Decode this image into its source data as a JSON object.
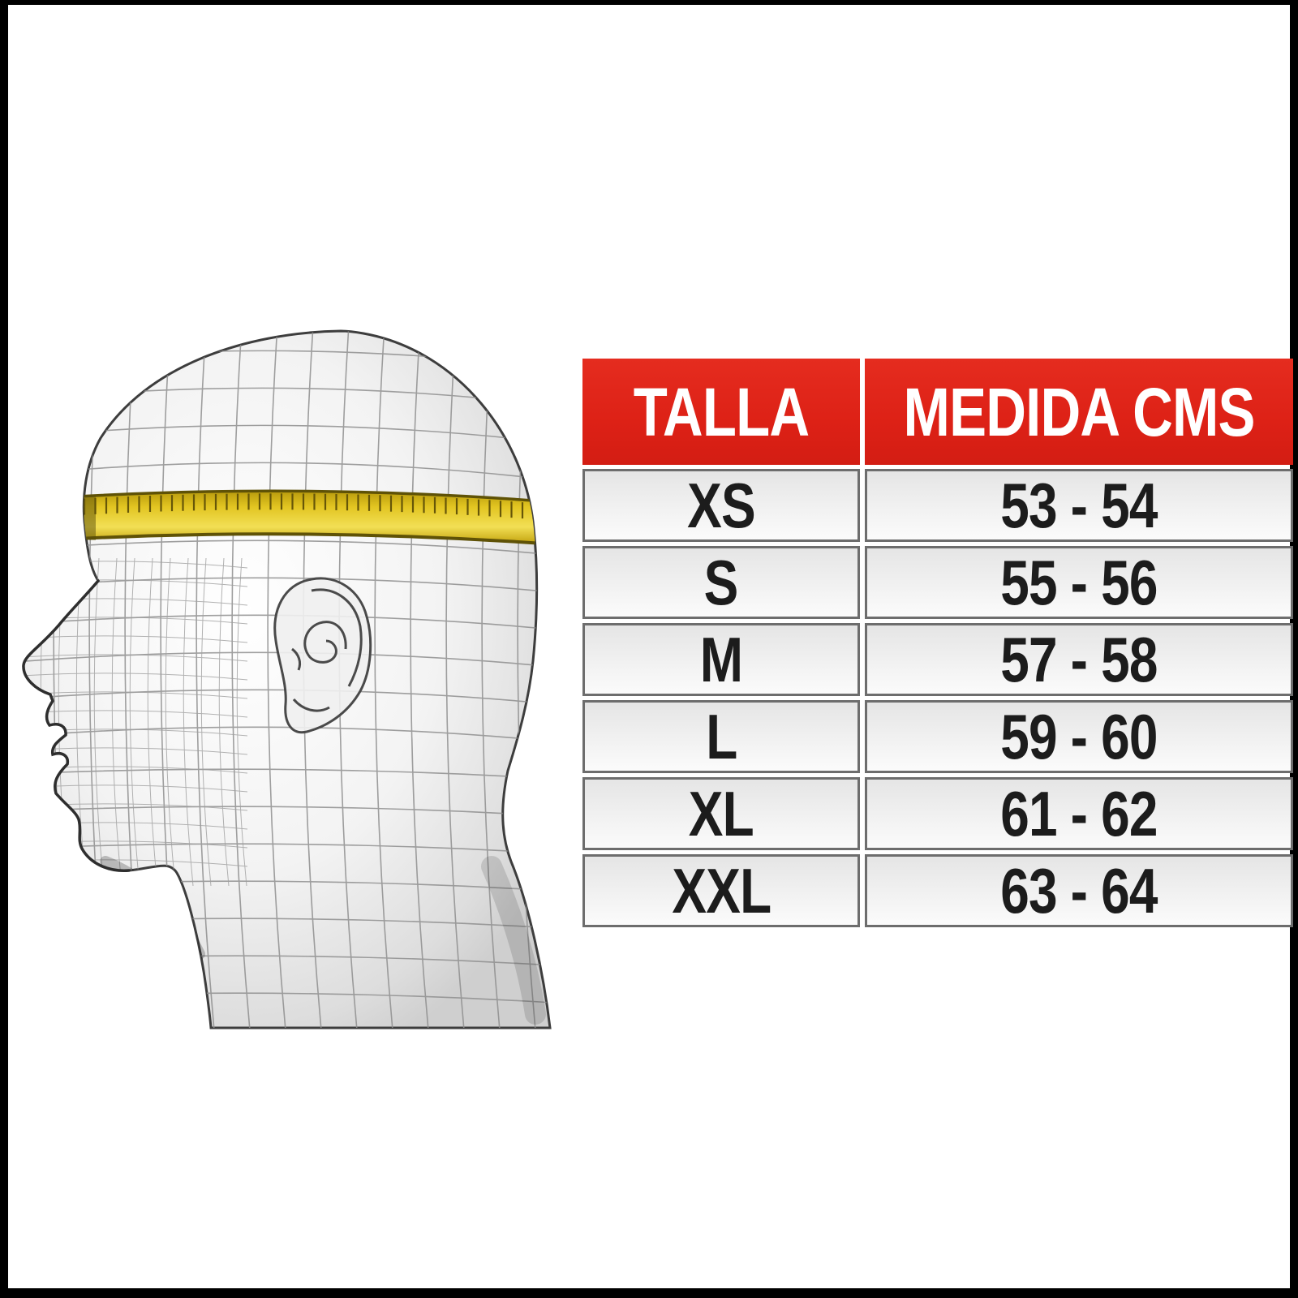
{
  "frame": {
    "border_color": "#000000",
    "canvas_color": "#ffffff"
  },
  "illustration": {
    "description": "wireframe-head-side-profile-with-measuring-tape",
    "mesh_color": "#8f8f8f",
    "outline_color": "#3d3d3d",
    "band_color": "#e7cc2e",
    "band_edge_color": "#5f5206"
  },
  "size_table": {
    "header": {
      "talla": "TALLA",
      "medida": "MEDIDA CMS"
    },
    "rows": [
      {
        "talla": "XS",
        "medida": "53 - 54"
      },
      {
        "talla": "S",
        "medida": "55 - 56"
      },
      {
        "talla": "M",
        "medida": "57 - 58"
      },
      {
        "talla": "L",
        "medida": "59 - 60"
      },
      {
        "talla": "XL",
        "medida": "61 - 62"
      },
      {
        "talla": "XXL",
        "medida": "63 - 64"
      }
    ],
    "colors": {
      "header_bg": "#e0241a",
      "header_text": "#ffffff",
      "row_bg": "#ececec",
      "row_text": "#1c1c1c",
      "cell_border": "#6d6d6d"
    }
  },
  "chart_data": {
    "type": "table",
    "title": "",
    "columns": [
      "TALLA",
      "MEDIDA CMS"
    ],
    "rows": [
      [
        "XS",
        "53 - 54"
      ],
      [
        "S",
        "55 - 56"
      ],
      [
        "M",
        "57 - 58"
      ],
      [
        "L",
        "59 - 60"
      ],
      [
        "XL",
        "61 - 62"
      ],
      [
        "XXL",
        "63 - 64"
      ]
    ],
    "notes": "Helmet size chart: size vs head circumference in centimeters",
    "header_bg": "#e0241a"
  }
}
